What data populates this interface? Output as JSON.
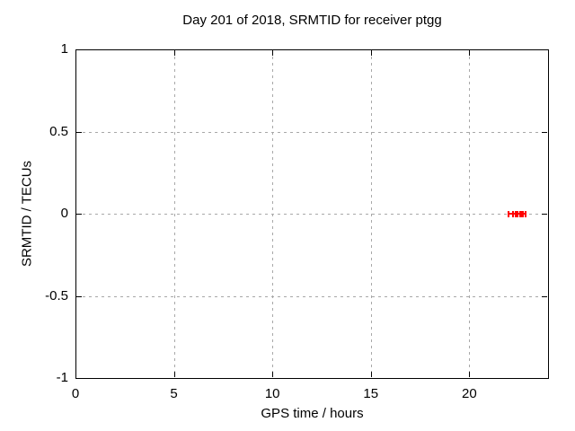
{
  "chart_data": {
    "type": "scatter",
    "style": "xerrorbars",
    "title": "Day 201 of 2018, SRMTID for receiver ptgg",
    "xlabel": "GPS time / hours",
    "ylabel": "SRMTID / TECUs",
    "xlim": [
      0,
      24
    ],
    "ylim": [
      -1,
      1
    ],
    "xticks": [
      0,
      5,
      10,
      15,
      20
    ],
    "yticks": [
      1,
      0.5,
      0,
      -0.5,
      -1
    ],
    "grid": true,
    "grid_x": [
      5,
      10,
      15,
      20
    ],
    "grid_y": [
      0.5,
      0,
      -0.5
    ],
    "legend": "none",
    "series": [
      {
        "name": "SRMTID",
        "color": "#ff0000",
        "points": [
          {
            "x": 22.2,
            "y": 0,
            "xlow": 21.97,
            "xhigh": 22.37
          },
          {
            "x": 22.57,
            "y": 0,
            "xlow": 22.47,
            "xhigh": 22.67
          },
          {
            "x": 22.74,
            "y": 0,
            "xlow": 22.64,
            "xhigh": 22.84
          }
        ]
      }
    ],
    "colors": {
      "background": "#ffffff",
      "border": "#000000",
      "grid": "#a8a8a8",
      "text": "#000000",
      "points": "#ff0000"
    }
  }
}
